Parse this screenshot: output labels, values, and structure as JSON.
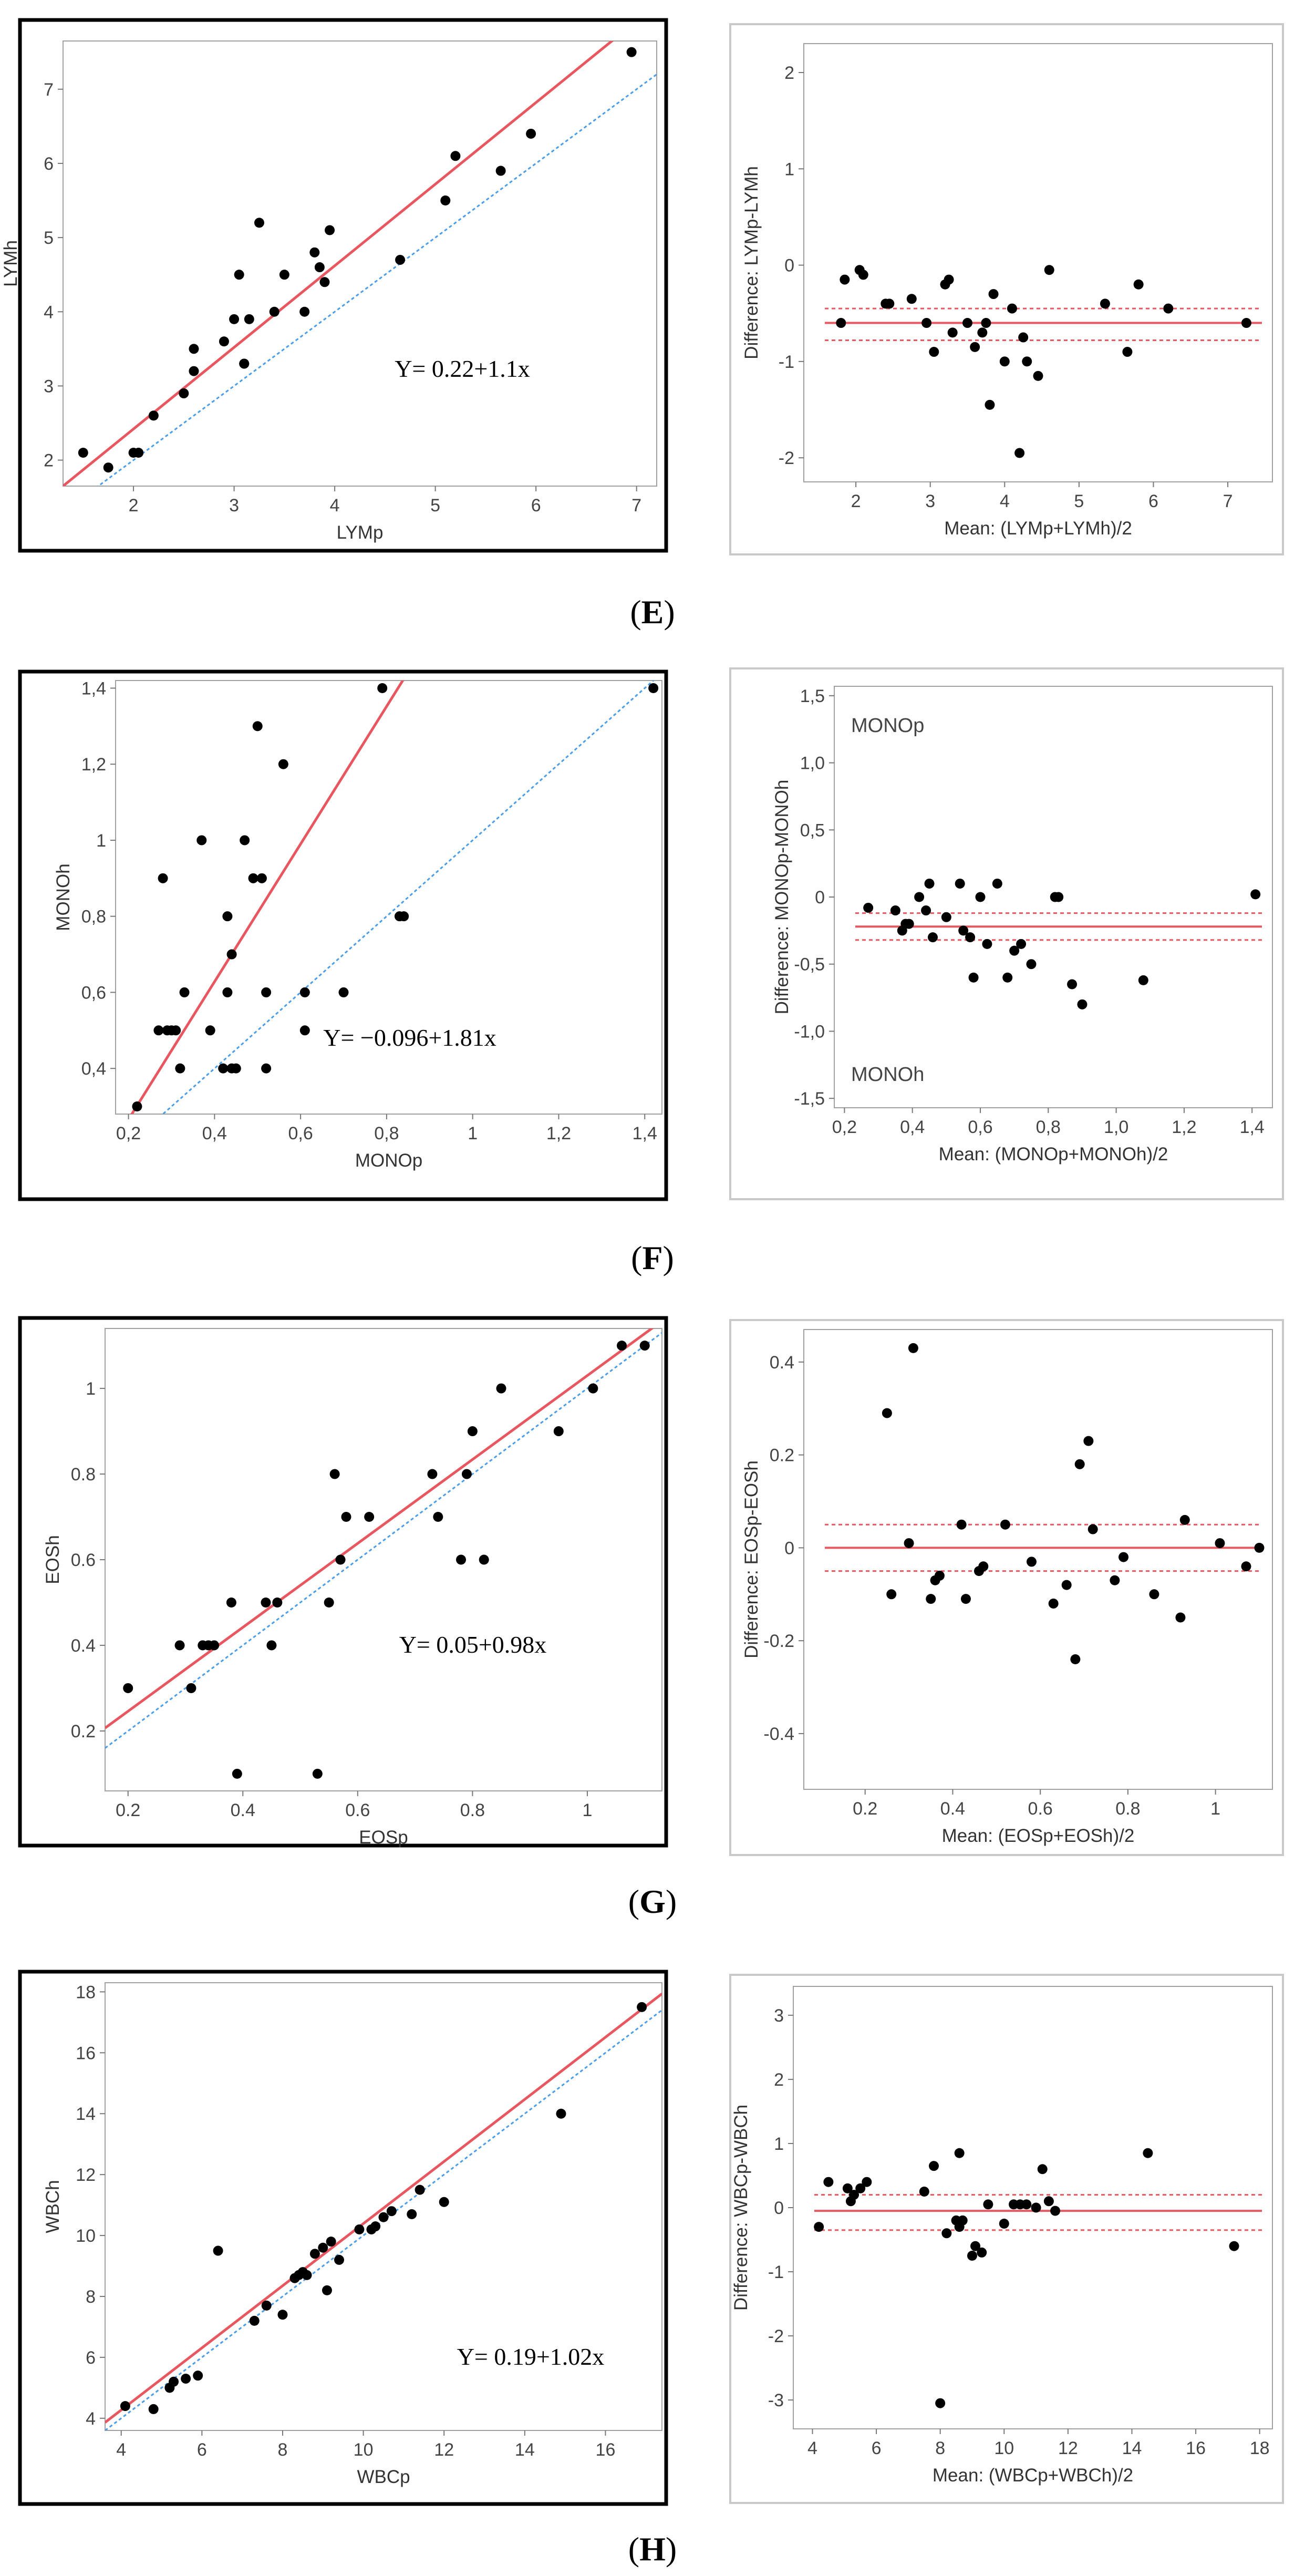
{
  "colors": {
    "fit_line": "#e8575f",
    "identity_line": "#4a9de6",
    "points": "#000000",
    "frame": "#000000",
    "light_frame": "#c9c9c9"
  },
  "chart_data": [
    {
      "id": "E-scatter",
      "type": "scatter",
      "panel": "E",
      "xlabel": "LYMp",
      "ylabel": "LYMh",
      "xlim": [
        1.3,
        7.2
      ],
      "ylim": [
        1.65,
        7.65
      ],
      "xticks": [
        2,
        3,
        4,
        5,
        6,
        7
      ],
      "yticks": [
        2,
        3,
        4,
        5,
        6,
        7
      ],
      "equation": "Y= 0.22+1.1x",
      "fit": {
        "intercept": 0.22,
        "slope": 1.1
      },
      "identity": true,
      "x": [
        1.5,
        1.75,
        2.0,
        2.05,
        2.2,
        2.5,
        2.6,
        2.6,
        2.9,
        3.0,
        3.05,
        3.1,
        3.1,
        3.15,
        3.25,
        3.4,
        3.5,
        3.7,
        3.8,
        3.85,
        3.9,
        3.95,
        4.65,
        5.1,
        5.2,
        5.65,
        5.95,
        6.95
      ],
      "y": [
        2.1,
        1.9,
        2.1,
        2.1,
        2.6,
        2.9,
        3.5,
        3.2,
        3.6,
        3.9,
        4.5,
        3.3,
        3.3,
        3.9,
        5.2,
        4.0,
        4.5,
        4.0,
        4.8,
        4.6,
        4.4,
        5.1,
        4.7,
        5.5,
        6.1,
        5.9,
        6.4,
        7.5
      ]
    },
    {
      "id": "E-diff",
      "type": "scatter",
      "panel": "E",
      "xlabel": "Mean: (LYMp+LYMh)/2",
      "ylabel": "Difference: LYMp-LYMh",
      "xlim": [
        1.3,
        7.6
      ],
      "ylim": [
        -2.25,
        2.3
      ],
      "xticks": [
        2,
        3,
        4,
        5,
        6,
        7
      ],
      "yticks": [
        -2,
        -1,
        0,
        1,
        2
      ],
      "mean_diff": -0.6,
      "limits": [
        -0.45,
        -0.78
      ],
      "x": [
        1.8,
        1.85,
        2.05,
        2.1,
        2.4,
        2.45,
        2.75,
        2.95,
        3.05,
        3.2,
        3.25,
        3.3,
        3.5,
        3.6,
        3.7,
        3.75,
        3.8,
        3.85,
        4.0,
        4.1,
        4.2,
        4.25,
        4.3,
        4.45,
        4.6,
        5.35,
        5.65,
        5.8,
        6.2,
        7.25
      ],
      "y": [
        -0.6,
        -0.15,
        -0.05,
        -0.1,
        -0.4,
        -0.4,
        -0.35,
        -0.6,
        -0.9,
        -0.2,
        -0.15,
        -0.7,
        -0.6,
        -0.85,
        -0.7,
        -0.6,
        -1.45,
        -0.3,
        -1.0,
        -0.45,
        -1.95,
        -0.75,
        -1.0,
        -1.15,
        -0.05,
        -0.4,
        -0.9,
        -0.2,
        -0.45,
        -0.6
      ]
    },
    {
      "id": "F-scatter",
      "type": "scatter",
      "panel": "F",
      "xlabel": "MONOp",
      "ylabel": "MONOh",
      "xlim": [
        0.17,
        1.44
      ],
      "ylim": [
        0.28,
        1.42
      ],
      "xticks": [
        0.2,
        0.4,
        0.6,
        0.8,
        1,
        1.2,
        1.4
      ],
      "yticks": [
        0.4,
        0.6,
        0.8,
        1,
        1.2,
        1.4
      ],
      "xtick_labels": [
        "0,2",
        "0,4",
        "0,6",
        "0,8",
        "1",
        "1,2",
        "1,4"
      ],
      "ytick_labels": [
        "0,4",
        "0,6",
        "0,8",
        "1",
        "1,2",
        "1,4"
      ],
      "equation": "Y= −0.096+1.81x",
      "fit": {
        "intercept": -0.096,
        "slope": 1.81
      },
      "identity": true,
      "x": [
        0.22,
        0.27,
        0.28,
        0.29,
        0.3,
        0.31,
        0.32,
        0.33,
        0.37,
        0.39,
        0.42,
        0.43,
        0.43,
        0.44,
        0.44,
        0.45,
        0.47,
        0.49,
        0.5,
        0.51,
        0.52,
        0.52,
        0.56,
        0.61,
        0.61,
        0.7,
        0.79,
        0.83,
        0.84,
        1.42
      ],
      "y": [
        0.3,
        0.5,
        0.9,
        0.5,
        0.5,
        0.5,
        0.4,
        0.6,
        1.0,
        0.5,
        0.4,
        0.8,
        0.6,
        0.4,
        0.7,
        0.4,
        1.0,
        0.9,
        1.3,
        0.9,
        0.6,
        0.4,
        1.2,
        0.5,
        0.6,
        0.6,
        1.4,
        0.8,
        0.8,
        1.4
      ]
    },
    {
      "id": "F-diff",
      "type": "scatter",
      "panel": "F",
      "xlabel": "Mean: (MONOp+MONOh)/2",
      "ylabel": "Difference: MONOp-MONOh",
      "xlim": [
        0.17,
        1.46
      ],
      "ylim": [
        -1.57,
        1.57
      ],
      "xticks": [
        0.2,
        0.4,
        0.6,
        0.8,
        1,
        1.2,
        1.4
      ],
      "yticks": [
        -1.5,
        -1,
        -0.5,
        0,
        0.5,
        1,
        1.5
      ],
      "xtick_labels": [
        "0,2",
        "0,4",
        "0,6",
        "0,8",
        "1,0",
        "1,2",
        "1,4"
      ],
      "ytick_labels": [
        "-1,5",
        "-1,0",
        "-0,5",
        "0",
        "0,5",
        "1,0",
        "1,5"
      ],
      "annotations": [
        "MONOp",
        "MONOh"
      ],
      "mean_diff": -0.22,
      "limits": [
        -0.12,
        -0.32
      ],
      "x": [
        0.27,
        0.35,
        0.37,
        0.38,
        0.39,
        0.42,
        0.44,
        0.45,
        0.46,
        0.5,
        0.54,
        0.55,
        0.57,
        0.58,
        0.6,
        0.62,
        0.65,
        0.68,
        0.7,
        0.72,
        0.75,
        0.82,
        0.83,
        0.87,
        0.9,
        1.08,
        1.41
      ],
      "y": [
        -0.08,
        -0.1,
        -0.25,
        -0.2,
        -0.2,
        0.0,
        -0.1,
        0.1,
        -0.3,
        -0.15,
        0.1,
        -0.25,
        -0.3,
        -0.6,
        0.0,
        -0.35,
        0.1,
        -0.6,
        -0.4,
        -0.35,
        -0.5,
        0.0,
        0.0,
        -0.65,
        -0.8,
        -0.62,
        0.02
      ]
    },
    {
      "id": "G-scatter",
      "type": "scatter",
      "panel": "G",
      "xlabel": "EOSp",
      "ylabel": "EOSh",
      "xlim": [
        0.16,
        1.13
      ],
      "ylim": [
        0.06,
        1.14
      ],
      "xticks": [
        0.2,
        0.4,
        0.6,
        0.8,
        1
      ],
      "yticks": [
        0.2,
        0.4,
        0.6,
        0.8,
        1
      ],
      "equation": "Y= 0.05+0.98x",
      "fit": {
        "intercept": 0.05,
        "slope": 0.98
      },
      "identity": true,
      "x": [
        0.2,
        0.29,
        0.31,
        0.33,
        0.34,
        0.35,
        0.38,
        0.39,
        0.44,
        0.45,
        0.46,
        0.53,
        0.55,
        0.56,
        0.57,
        0.58,
        0.62,
        0.73,
        0.74,
        0.78,
        0.79,
        0.8,
        0.82,
        0.85,
        0.95,
        1.01,
        1.06,
        1.1
      ],
      "y": [
        0.3,
        0.4,
        0.3,
        0.4,
        0.4,
        0.4,
        0.5,
        0.1,
        0.5,
        0.4,
        0.5,
        0.1,
        0.5,
        0.8,
        0.6,
        0.7,
        0.7,
        0.8,
        0.7,
        0.6,
        0.8,
        0.9,
        0.6,
        1.0,
        0.9,
        1.0,
        1.1,
        1.1
      ]
    },
    {
      "id": "G-diff",
      "type": "scatter",
      "panel": "G",
      "xlabel": "Mean: (EOSp+EOSh)/2",
      "ylabel": "Difference: EOSp-EOSh",
      "xlim": [
        0.06,
        1.13
      ],
      "ylim": [
        -0.52,
        0.47
      ],
      "xticks": [
        0.2,
        0.4,
        0.6,
        0.8,
        1
      ],
      "yticks": [
        -0.4,
        -0.2,
        0,
        0.2,
        0.4
      ],
      "mean_diff": 0.0,
      "limits": [
        0.05,
        -0.05
      ],
      "x": [
        0.25,
        0.26,
        0.3,
        0.31,
        0.35,
        0.36,
        0.37,
        0.42,
        0.43,
        0.46,
        0.47,
        0.52,
        0.58,
        0.63,
        0.66,
        0.68,
        0.69,
        0.71,
        0.72,
        0.77,
        0.79,
        0.86,
        0.92,
        0.93,
        1.01,
        1.07,
        1.1
      ],
      "y": [
        0.29,
        -0.1,
        0.01,
        0.43,
        -0.11,
        -0.07,
        -0.06,
        0.05,
        -0.11,
        -0.05,
        -0.04,
        0.05,
        -0.03,
        -0.12,
        -0.08,
        -0.24,
        0.18,
        0.23,
        0.04,
        -0.07,
        -0.02,
        -0.1,
        -0.15,
        0.06,
        0.01,
        -0.04,
        0.0
      ]
    },
    {
      "id": "H-scatter",
      "type": "scatter",
      "panel": "H",
      "xlabel": "WBCp",
      "ylabel": "WBCh",
      "xlim": [
        3.6,
        17.4
      ],
      "ylim": [
        3.6,
        18.3
      ],
      "xticks": [
        4,
        6,
        8,
        10,
        12,
        14,
        16
      ],
      "yticks": [
        4,
        6,
        8,
        10,
        12,
        14,
        16,
        18
      ],
      "equation": "Y= 0.19+1.02x",
      "fit": {
        "intercept": 0.19,
        "slope": 1.02
      },
      "identity": true,
      "x": [
        4.1,
        4.8,
        5.2,
        5.3,
        5.6,
        5.9,
        6.4,
        7.3,
        7.6,
        8.0,
        8.3,
        8.4,
        8.5,
        8.6,
        8.8,
        9.0,
        9.1,
        9.2,
        9.4,
        9.9,
        10.2,
        10.3,
        10.5,
        10.7,
        11.2,
        11.4,
        12.0,
        14.9,
        16.9
      ],
      "y": [
        4.4,
        4.3,
        5.0,
        5.2,
        5.3,
        5.4,
        9.5,
        7.2,
        7.7,
        7.4,
        8.6,
        8.7,
        8.8,
        8.7,
        9.4,
        9.6,
        8.2,
        9.8,
        9.2,
        10.2,
        10.2,
        10.3,
        10.6,
        10.8,
        10.7,
        11.5,
        11.1,
        14.0,
        17.5
      ]
    },
    {
      "id": "H-diff",
      "type": "scatter",
      "panel": "H",
      "xlabel": "Mean: (WBCp+WBCh)/2",
      "ylabel": "Difference: WBCp-WBCh",
      "xlim": [
        3.4,
        18.4
      ],
      "ylim": [
        -3.45,
        3.45
      ],
      "xticks": [
        4,
        6,
        8,
        10,
        12,
        14,
        16,
        18
      ],
      "yticks": [
        -3,
        -2,
        -1,
        0,
        1,
        2,
        3
      ],
      "mean_diff": -0.05,
      "limits": [
        0.2,
        -0.35
      ],
      "x": [
        4.2,
        4.5,
        5.1,
        5.2,
        5.3,
        5.5,
        5.7,
        7.5,
        7.8,
        8.0,
        8.2,
        8.5,
        8.6,
        8.6,
        8.7,
        9.0,
        9.1,
        9.3,
        9.5,
        10.0,
        10.3,
        10.5,
        10.7,
        11.0,
        11.2,
        11.4,
        11.6,
        14.5,
        17.2
      ],
      "y": [
        -0.3,
        0.4,
        0.3,
        0.1,
        0.2,
        0.3,
        0.4,
        0.25,
        0.65,
        -3.05,
        -0.4,
        -0.2,
        0.85,
        -0.3,
        -0.2,
        -0.75,
        -0.6,
        -0.7,
        0.05,
        -0.25,
        0.05,
        0.05,
        0.05,
        0.0,
        0.6,
        0.1,
        -0.05,
        0.85,
        -0.6
      ]
    }
  ],
  "panel_labels": [
    "E",
    "F",
    "G",
    "H"
  ]
}
